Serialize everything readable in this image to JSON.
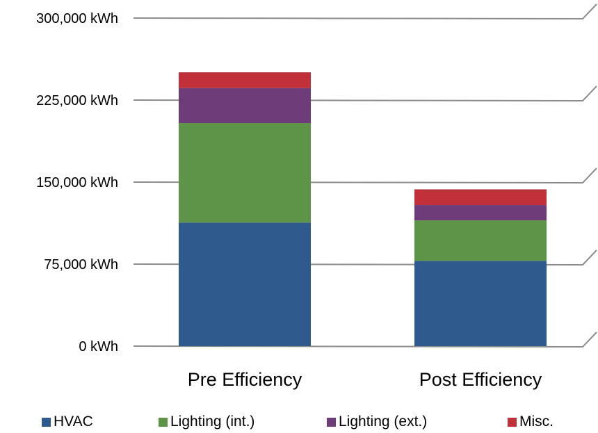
{
  "chart_data": {
    "type": "bar",
    "stacked": true,
    "categories": [
      "Pre Efficiency",
      "Post Efficiency"
    ],
    "series": [
      {
        "name": "HVAC",
        "color": "#2F5A8E",
        "values": [
          113000,
          78000
        ]
      },
      {
        "name": "Lighting (int.)",
        "color": "#5E9447",
        "values": [
          91000,
          37000
        ]
      },
      {
        "name": "Lighting (ext.)",
        "color": "#6F3C7A",
        "values": [
          32000,
          14000
        ]
      },
      {
        "name": "Misc.",
        "color": "#C2303A",
        "values": [
          14000,
          14000
        ]
      }
    ],
    "ylim": [
      0,
      300000
    ],
    "yticks": [
      0,
      75000,
      150000,
      225000,
      300000
    ],
    "ytick_labels": [
      "0 kWh",
      "75,000 kWh",
      "150,000 kWh",
      "225,000 kWh",
      "300,000 kWh"
    ],
    "grid": true,
    "legend_position": "bottom"
  }
}
